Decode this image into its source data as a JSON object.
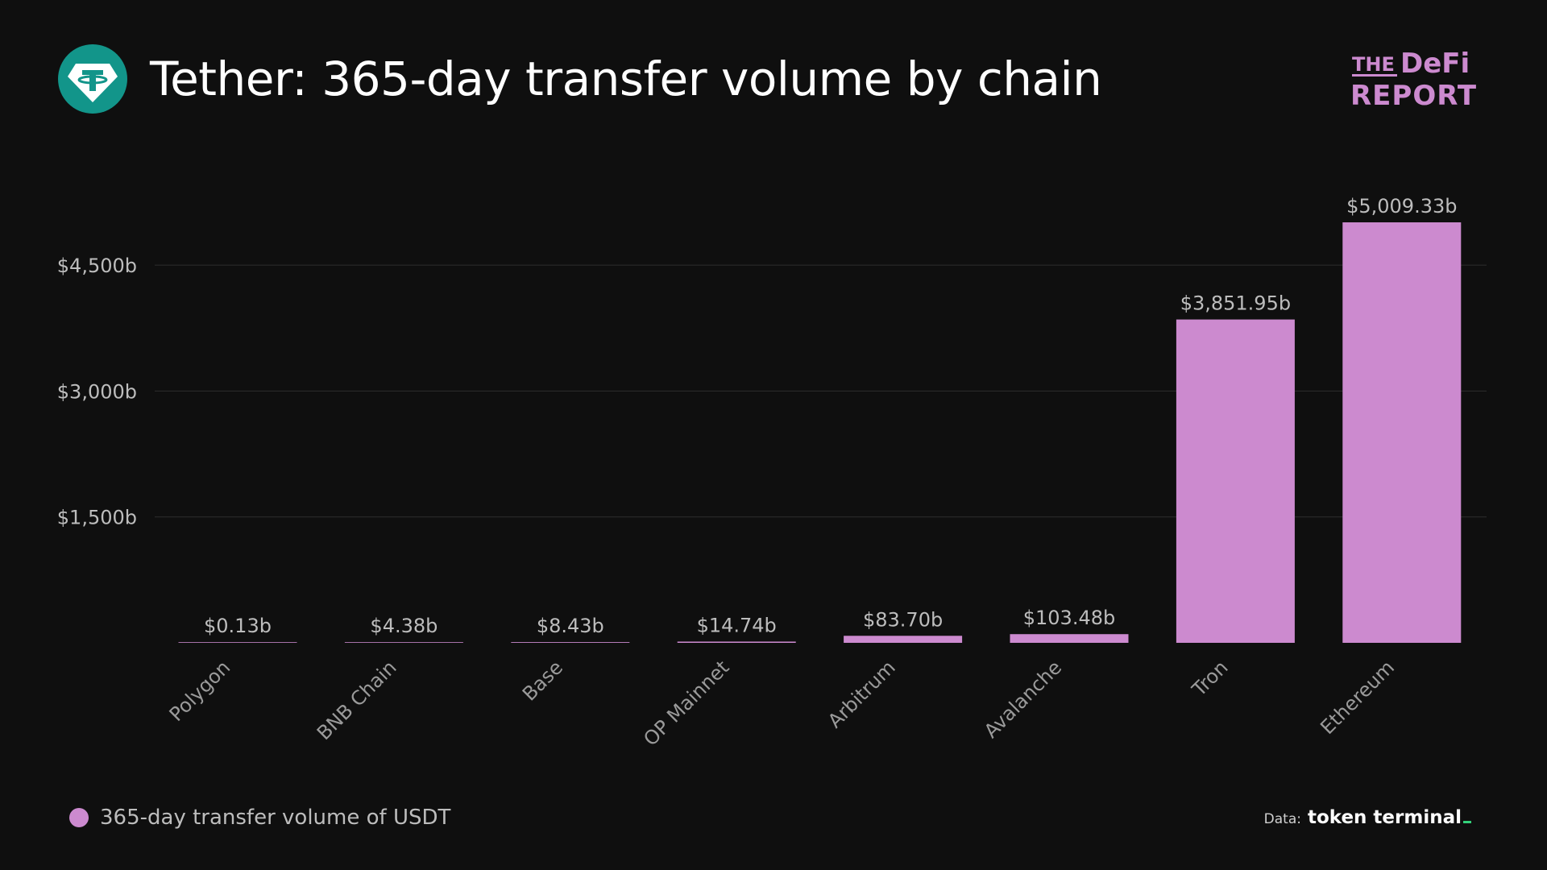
{
  "header": {
    "title": "Tether: 365-day transfer volume by chain",
    "logo_icon": "tether-icon",
    "logo_color": "#12958a"
  },
  "brand": {
    "line1_small": "THE",
    "line1_large": "DeFi",
    "line2": "REPORT",
    "color": "#cc8acf"
  },
  "legend": {
    "label": "365-day transfer volume of USDT",
    "color": "#cc8acf"
  },
  "source": {
    "label": "Data:",
    "name": "token terminal"
  },
  "chart_data": {
    "type": "bar",
    "categories": [
      "Polygon",
      "BNB Chain",
      "Base",
      "OP Mainnet",
      "Arbitrum",
      "Avalanche",
      "Tron",
      "Ethereum"
    ],
    "values": [
      0.13,
      4.38,
      8.43,
      14.74,
      83.7,
      103.48,
      3851.95,
      5009.33
    ],
    "data_labels": [
      "$0.13b",
      "$4.38b",
      "$8.43b",
      "$14.74b",
      "$83.70b",
      "$103.48b",
      "$3,851.95b",
      "$5,009.33b"
    ],
    "y_ticks": [
      1500,
      3000,
      4500
    ],
    "y_tick_labels": [
      "$1,500b",
      "$3,000b",
      "$4,500b"
    ],
    "ylim": [
      0,
      5009.33
    ],
    "grid": true,
    "bar_color": "#cc8acf",
    "legend_position": "bottom-left"
  }
}
